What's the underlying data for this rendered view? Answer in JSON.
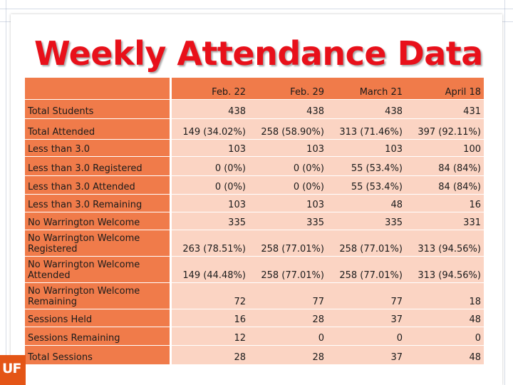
{
  "title": "Weekly Attendance Data",
  "columns": [
    "Feb. 22",
    "Feb. 29",
    "March 21",
    "April 18"
  ],
  "rows": [
    {
      "label": "Total Students",
      "values": [
        "438",
        "438",
        "438",
        "431"
      ]
    },
    {
      "label": "Total Attended",
      "values": [
        "149 (34.02%)",
        "258 (58.90%)",
        "313 (71.46%)",
        "397 (92.11%)"
      ]
    },
    {
      "label": "Less than 3.0",
      "values": [
        "103",
        "103",
        "103",
        "100"
      ]
    },
    {
      "label": "Less than 3.0 Registered",
      "values": [
        "0 (0%)",
        "0 (0%)",
        "55 (53.4%)",
        "84 (84%)"
      ]
    },
    {
      "label": "Less than 3.0 Attended",
      "values": [
        "0 (0%)",
        "0 (0%)",
        "55 (53.4%)",
        "84 (84%)"
      ]
    },
    {
      "label": "Less than 3.0 Remaining",
      "values": [
        "103",
        "103",
        "48",
        "16"
      ]
    },
    {
      "label": "No Warrington Welcome",
      "values": [
        "335",
        "335",
        "335",
        "331"
      ]
    },
    {
      "label": "No Warrington Welcome Registered",
      "values": [
        "263 (78.51%)",
        "258 (77.01%)",
        "258 (77.01%)",
        "313 (94.56%)"
      ]
    },
    {
      "label": "No Warrington Welcome Attended",
      "values": [
        "149 (44.48%)",
        "258 (77.01%)",
        "258 (77.01%)",
        "313 (94.56%)"
      ]
    },
    {
      "label": "No Warrington Welcome Remaining",
      "values": [
        "72",
        "77",
        "77",
        "18"
      ]
    },
    {
      "label": "Sessions Held",
      "values": [
        "16",
        "28",
        "37",
        "48"
      ]
    },
    {
      "label": "Sessions Remaining",
      "values": [
        "12",
        "0",
        "0",
        "0"
      ]
    },
    {
      "label": "Total Sessions",
      "values": [
        "28",
        "28",
        "37",
        "48"
      ]
    }
  ],
  "logo": "UF",
  "colors": {
    "title": "#e8101a",
    "label_bg": "#f07b4a",
    "value_bg": "#fbd4c3",
    "logo_bg": "#e45516"
  }
}
